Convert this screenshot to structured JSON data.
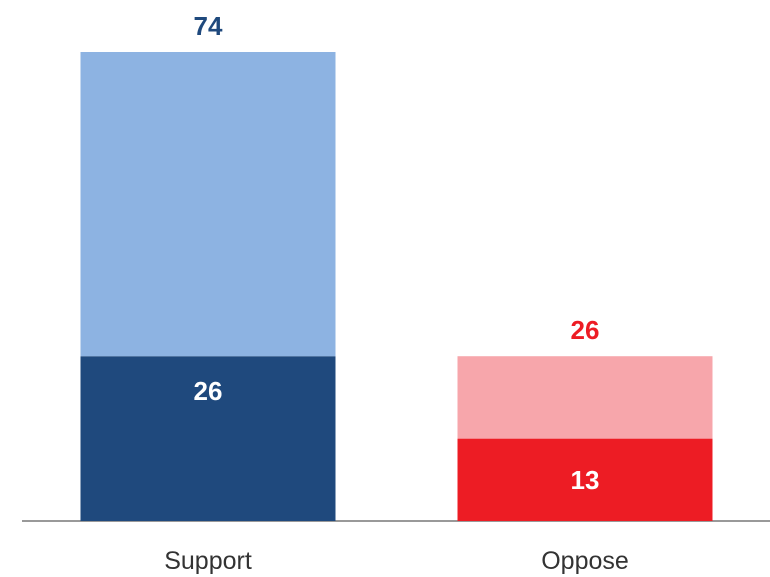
{
  "chart_data": {
    "type": "bar",
    "stacked": true,
    "categories": [
      "Support",
      "Oppose"
    ],
    "totals": [
      74,
      26
    ],
    "series": [
      {
        "values": [
          26,
          13
        ],
        "colors": [
          "#1f497d",
          "#ed1c24"
        ]
      },
      {
        "values": [
          48,
          13
        ],
        "colors": [
          "#8db3e2",
          "#f7a6ab"
        ]
      }
    ],
    "total_label_colors": [
      "#1f497d",
      "#ed1c24"
    ],
    "inner_labels": [
      26,
      13
    ],
    "ylim": [
      0,
      74
    ],
    "grid": false,
    "legend": "none",
    "axis_color": "#999999"
  }
}
